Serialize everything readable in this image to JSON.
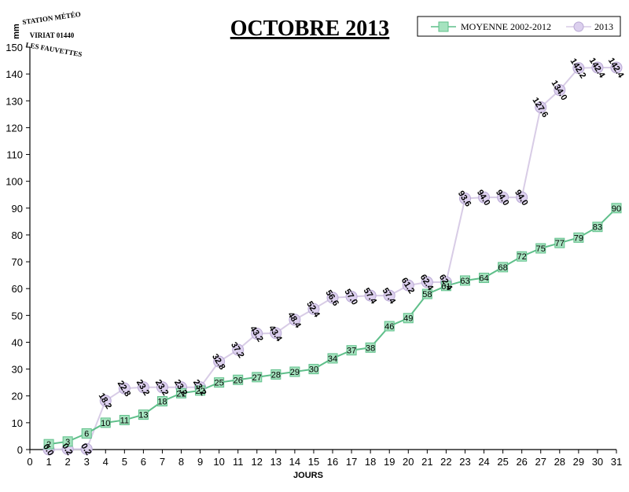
{
  "header": {
    "title": "OCTOBRE 2013",
    "unit": "mm",
    "logo": [
      "STATION MÉTÉO",
      "VIRIAT 01440",
      "LES FAUVETTES"
    ]
  },
  "colors": {
    "avg_line": "#5fbf8a",
    "avg_fill": "#a5e3bf",
    "y2013_line": "#d8cce6",
    "y2013_fill": "#dcd0ee"
  },
  "chart_data": {
    "type": "line",
    "title": "OCTOBRE 2013",
    "xlabel": "JOURS",
    "ylabel": "mm",
    "xlim": [
      0,
      31
    ],
    "ylim": [
      0,
      150
    ],
    "xticks": [
      0,
      1,
      2,
      3,
      4,
      5,
      6,
      7,
      8,
      9,
      10,
      11,
      12,
      13,
      14,
      15,
      16,
      17,
      18,
      19,
      20,
      21,
      22,
      23,
      24,
      25,
      26,
      27,
      28,
      29,
      30,
      31
    ],
    "yticks": [
      0,
      10,
      20,
      30,
      40,
      50,
      60,
      70,
      80,
      90,
      100,
      110,
      120,
      130,
      140,
      150
    ],
    "grid": false,
    "legend_position": "top-right",
    "series": [
      {
        "name": "MOYENNE 2002-2012",
        "marker": "square",
        "x": [
          1,
          2,
          3,
          4,
          5,
          6,
          7,
          8,
          9,
          10,
          11,
          12,
          13,
          14,
          15,
          16,
          17,
          18,
          19,
          20,
          21,
          22,
          23,
          24,
          25,
          26,
          27,
          28,
          29,
          30,
          31
        ],
        "values": [
          2,
          3,
          6,
          10,
          11,
          13,
          18,
          21,
          22,
          25,
          26,
          27,
          28,
          29,
          30,
          34,
          37,
          38,
          46,
          49,
          58,
          61,
          63,
          64,
          68,
          72,
          75,
          77,
          79,
          83,
          90
        ],
        "labels": [
          "2",
          "3",
          "6",
          "10",
          "11",
          "13",
          "18",
          "21",
          "22",
          "25",
          "26",
          "27",
          "28",
          "29",
          "30",
          "34",
          "37",
          "38",
          "46",
          "49",
          "58",
          "61",
          "63",
          "64",
          "68",
          "72",
          "75",
          "77",
          "79",
          "83",
          "90"
        ]
      },
      {
        "name": "2013",
        "marker": "circle",
        "x": [
          1,
          2,
          3,
          4,
          5,
          6,
          7,
          8,
          9,
          10,
          11,
          12,
          13,
          14,
          15,
          16,
          17,
          18,
          19,
          20,
          21,
          22,
          23,
          24,
          25,
          26,
          27,
          28,
          29,
          30,
          31
        ],
        "values": [
          0.0,
          0.2,
          0.2,
          18.2,
          22.8,
          23.2,
          23.2,
          23.2,
          23.2,
          32.8,
          37.2,
          43.2,
          43.4,
          48.4,
          52.4,
          56.6,
          57.0,
          57.4,
          57.4,
          61.2,
          62.4,
          62.4,
          93.6,
          94.0,
          94.0,
          94.0,
          127.6,
          134.0,
          142.2,
          142.4,
          142.4
        ],
        "labels": [
          "0.0",
          "0.2",
          "0.2",
          "18.2",
          "22.8",
          "23.2",
          "23.2",
          "23.2",
          "23.2",
          "32.8",
          "37.2",
          "43.2",
          "43.4",
          "48.4",
          "52.4",
          "56.6",
          "57.0",
          "57.4",
          "57.4",
          "61.2",
          "62.4",
          "62.4",
          "93.6",
          "94.0",
          "94.0",
          "94.0",
          "127.6",
          "134.0",
          "142.2",
          "142.4",
          "142.4"
        ]
      }
    ]
  }
}
